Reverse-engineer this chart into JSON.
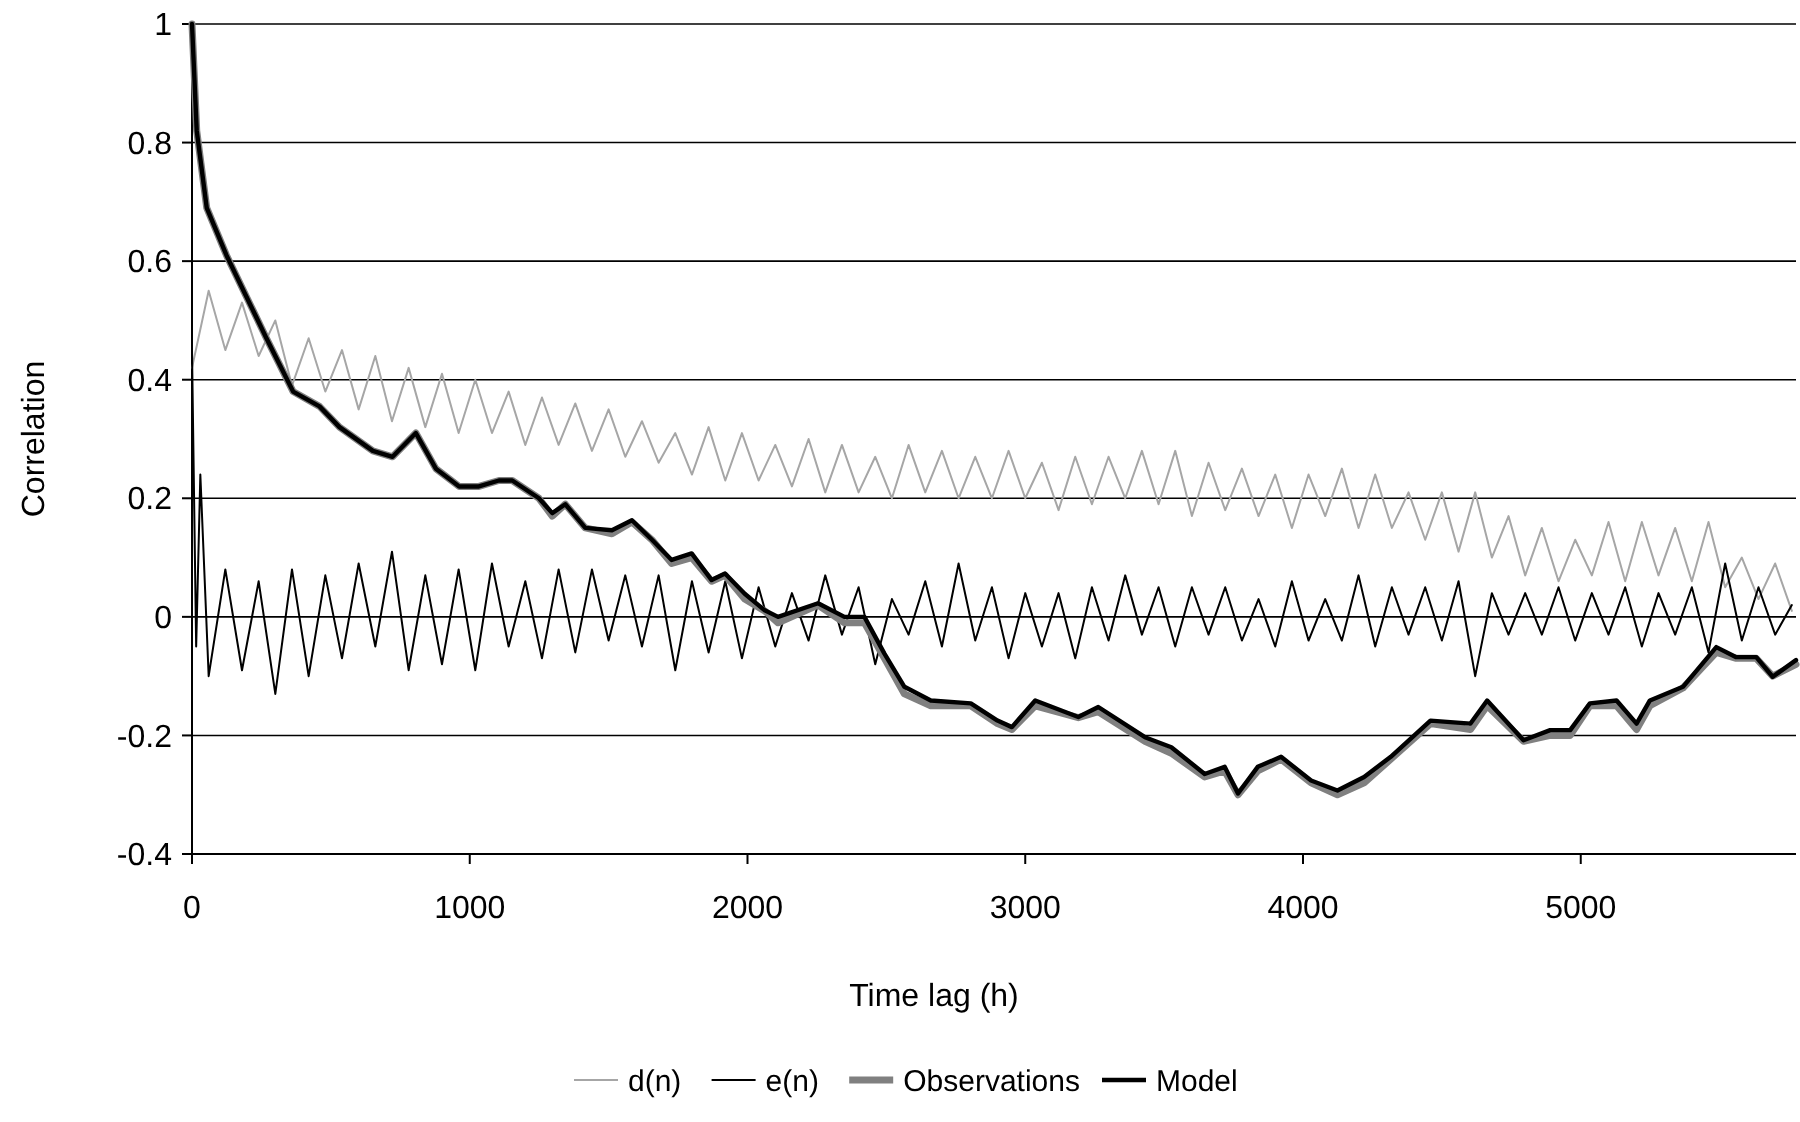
{
  "chart_data": {
    "type": "line",
    "xlabel": "Time lag (h)",
    "ylabel": "Correlation",
    "xlim": [
      0,
      5775
    ],
    "xticks": [
      0,
      1000,
      2000,
      3000,
      4000,
      5000
    ],
    "ylim": [
      -0.4,
      1
    ],
    "yticks": [
      -0.4,
      -0.2,
      0,
      0.2,
      0.4,
      0.6,
      0.8,
      1
    ],
    "grid": "y",
    "legend": "bottom",
    "line_style": "solid",
    "series": [
      {
        "name": "d(n)",
        "color": "#a6a6a6",
        "x": [
          0,
          60,
          120,
          180,
          240,
          300,
          360,
          420,
          480,
          540,
          600,
          660,
          720,
          780,
          840,
          900,
          960,
          1020,
          1080,
          1140,
          1200,
          1260,
          1320,
          1380,
          1440,
          1500,
          1560,
          1620,
          1680,
          1740,
          1800,
          1860,
          1920,
          1980,
          2040,
          2100,
          2160,
          2220,
          2280,
          2340,
          2400,
          2460,
          2520,
          2580,
          2640,
          2700,
          2760,
          2820,
          2880,
          2940,
          3000,
          3060,
          3120,
          3180,
          3240,
          3300,
          3360,
          3420,
          3480,
          3540,
          3600,
          3660,
          3720,
          3780,
          3840,
          3900,
          3960,
          4020,
          4080,
          4140,
          4200,
          4260,
          4320,
          4380,
          4440,
          4500,
          4560,
          4620,
          4680,
          4740,
          4800,
          4860,
          4920,
          4980,
          5040,
          5100,
          5160,
          5220,
          5280,
          5340,
          5400,
          5460,
          5520,
          5580,
          5640,
          5700,
          5760
        ],
        "values": [
          0.42,
          0.55,
          0.45,
          0.53,
          0.44,
          0.5,
          0.39,
          0.47,
          0.38,
          0.45,
          0.35,
          0.44,
          0.33,
          0.42,
          0.32,
          0.41,
          0.31,
          0.4,
          0.31,
          0.38,
          0.29,
          0.37,
          0.29,
          0.36,
          0.28,
          0.35,
          0.27,
          0.33,
          0.26,
          0.31,
          0.24,
          0.32,
          0.23,
          0.31,
          0.23,
          0.29,
          0.22,
          0.3,
          0.21,
          0.29,
          0.21,
          0.27,
          0.2,
          0.29,
          0.21,
          0.28,
          0.2,
          0.27,
          0.2,
          0.28,
          0.2,
          0.26,
          0.18,
          0.27,
          0.19,
          0.27,
          0.2,
          0.28,
          0.19,
          0.28,
          0.17,
          0.26,
          0.18,
          0.25,
          0.17,
          0.24,
          0.15,
          0.24,
          0.17,
          0.25,
          0.15,
          0.24,
          0.15,
          0.21,
          0.13,
          0.21,
          0.11,
          0.21,
          0.1,
          0.17,
          0.07,
          0.15,
          0.06,
          0.13,
          0.07,
          0.16,
          0.06,
          0.16,
          0.07,
          0.15,
          0.06,
          0.16,
          0.05,
          0.1,
          0.03,
          0.09,
          0.01
        ]
      },
      {
        "name": "e(n)",
        "color": "#000000",
        "x": [
          0,
          15,
          30,
          60,
          120,
          180,
          240,
          300,
          360,
          420,
          480,
          540,
          600,
          660,
          720,
          780,
          840,
          900,
          960,
          1020,
          1080,
          1140,
          1200,
          1260,
          1320,
          1380,
          1440,
          1500,
          1560,
          1620,
          1680,
          1740,
          1800,
          1860,
          1920,
          1980,
          2040,
          2100,
          2160,
          2220,
          2280,
          2340,
          2400,
          2460,
          2520,
          2580,
          2640,
          2700,
          2760,
          2820,
          2880,
          2940,
          3000,
          3060,
          3120,
          3180,
          3240,
          3300,
          3360,
          3420,
          3480,
          3540,
          3600,
          3660,
          3720,
          3780,
          3840,
          3900,
          3960,
          4020,
          4080,
          4140,
          4200,
          4260,
          4320,
          4380,
          4440,
          4500,
          4560,
          4620,
          4680,
          4740,
          4800,
          4860,
          4920,
          4980,
          5040,
          5100,
          5160,
          5220,
          5280,
          5340,
          5400,
          5460,
          5520,
          5580,
          5640,
          5700,
          5760
        ],
        "values": [
          0.45,
          -0.05,
          0.24,
          -0.1,
          0.08,
          -0.09,
          0.06,
          -0.13,
          0.08,
          -0.1,
          0.07,
          -0.07,
          0.09,
          -0.05,
          0.11,
          -0.09,
          0.07,
          -0.08,
          0.08,
          -0.09,
          0.09,
          -0.05,
          0.06,
          -0.07,
          0.08,
          -0.06,
          0.08,
          -0.04,
          0.07,
          -0.05,
          0.07,
          -0.09,
          0.06,
          -0.06,
          0.06,
          -0.07,
          0.05,
          -0.05,
          0.04,
          -0.04,
          0.07,
          -0.03,
          0.05,
          -0.08,
          0.03,
          -0.03,
          0.06,
          -0.05,
          0.09,
          -0.04,
          0.05,
          -0.07,
          0.04,
          -0.05,
          0.04,
          -0.07,
          0.05,
          -0.04,
          0.07,
          -0.03,
          0.05,
          -0.05,
          0.05,
          -0.03,
          0.05,
          -0.04,
          0.03,
          -0.05,
          0.06,
          -0.04,
          0.03,
          -0.04,
          0.07,
          -0.05,
          0.05,
          -0.03,
          0.05,
          -0.04,
          0.06,
          -0.1,
          0.04,
          -0.03,
          0.04,
          -0.03,
          0.05,
          -0.04,
          0.04,
          -0.03,
          0.05,
          -0.05,
          0.04,
          -0.03,
          0.05,
          -0.06,
          0.09,
          -0.04,
          0.05,
          -0.03,
          0.02
        ]
      },
      {
        "name": "Observations",
        "color": "#808080",
        "x": [
          0,
          17,
          53,
          124,
          196,
          268,
          364,
          459,
          531,
          651,
          722,
          806,
          878,
          962,
          1033,
          1105,
          1153,
          1249,
          1297,
          1344,
          1416,
          1512,
          1584,
          1656,
          1727,
          1799,
          1871,
          1919,
          1990,
          2062,
          2110,
          2254,
          2349,
          2421,
          2493,
          2565,
          2660,
          2804,
          2900,
          2952,
          3036,
          3191,
          3263,
          3431,
          3526,
          3646,
          3718,
          3766,
          3837,
          3921,
          4029,
          4124,
          4220,
          4316,
          4459,
          4603,
          4663,
          4794,
          4890,
          4962,
          5033,
          5129,
          5201,
          5249,
          5368,
          5488,
          5560,
          5632,
          5691,
          5775
        ],
        "values": [
          1,
          0.82,
          0.69,
          0.61,
          0.54,
          0.47,
          0.38,
          0.355,
          0.32,
          0.28,
          0.27,
          0.31,
          0.25,
          0.22,
          0.22,
          0.23,
          0.23,
          0.2,
          0.17,
          0.19,
          0.15,
          0.14,
          0.16,
          0.13,
          0.09,
          0.1,
          0.06,
          0.07,
          0.03,
          0.01,
          -0.01,
          0.02,
          -0.01,
          -0.01,
          -0.07,
          -0.13,
          -0.15,
          -0.15,
          -0.18,
          -0.19,
          -0.15,
          -0.17,
          -0.16,
          -0.21,
          -0.23,
          -0.27,
          -0.26,
          -0.3,
          -0.26,
          -0.24,
          -0.28,
          -0.3,
          -0.28,
          -0.24,
          -0.18,
          -0.19,
          -0.15,
          -0.21,
          -0.2,
          -0.2,
          -0.15,
          -0.15,
          -0.19,
          -0.15,
          -0.12,
          -0.06,
          -0.07,
          -0.07,
          -0.1,
          -0.08
        ]
      },
      {
        "name": "Model",
        "color": "#000000",
        "x": [
          0,
          17,
          53,
          124,
          196,
          268,
          364,
          459,
          531,
          651,
          722,
          806,
          878,
          962,
          1033,
          1105,
          1153,
          1249,
          1297,
          1344,
          1416,
          1512,
          1584,
          1656,
          1727,
          1799,
          1871,
          1919,
          1990,
          2062,
          2110,
          2254,
          2349,
          2421,
          2493,
          2565,
          2660,
          2804,
          2900,
          2952,
          3036,
          3191,
          3263,
          3431,
          3526,
          3646,
          3718,
          3766,
          3837,
          3921,
          4029,
          4124,
          4220,
          4316,
          4459,
          4603,
          4663,
          4794,
          4890,
          4962,
          5033,
          5129,
          5201,
          5249,
          5368,
          5488,
          5560,
          5632,
          5691,
          5775
        ],
        "values": [
          1,
          0.82,
          0.69,
          0.61,
          0.54,
          0.47,
          0.38,
          0.355,
          0.32,
          0.28,
          0.27,
          0.31,
          0.25,
          0.22,
          0.22,
          0.23,
          0.23,
          0.2,
          0.175,
          0.19,
          0.15,
          0.146,
          0.163,
          0.13,
          0.096,
          0.107,
          0.062,
          0.073,
          0.039,
          0.011,
          0,
          0.023,
          0,
          0,
          -0.062,
          -0.118,
          -0.141,
          -0.146,
          -0.175,
          -0.186,
          -0.141,
          -0.169,
          -0.152,
          -0.203,
          -0.22,
          -0.265,
          -0.253,
          -0.298,
          -0.253,
          -0.236,
          -0.276,
          -0.293,
          -0.27,
          -0.236,
          -0.175,
          -0.18,
          -0.141,
          -0.208,
          -0.191,
          -0.191,
          -0.146,
          -0.141,
          -0.18,
          -0.141,
          -0.118,
          -0.051,
          -0.068,
          -0.068,
          -0.101,
          -0.073
        ]
      }
    ]
  }
}
